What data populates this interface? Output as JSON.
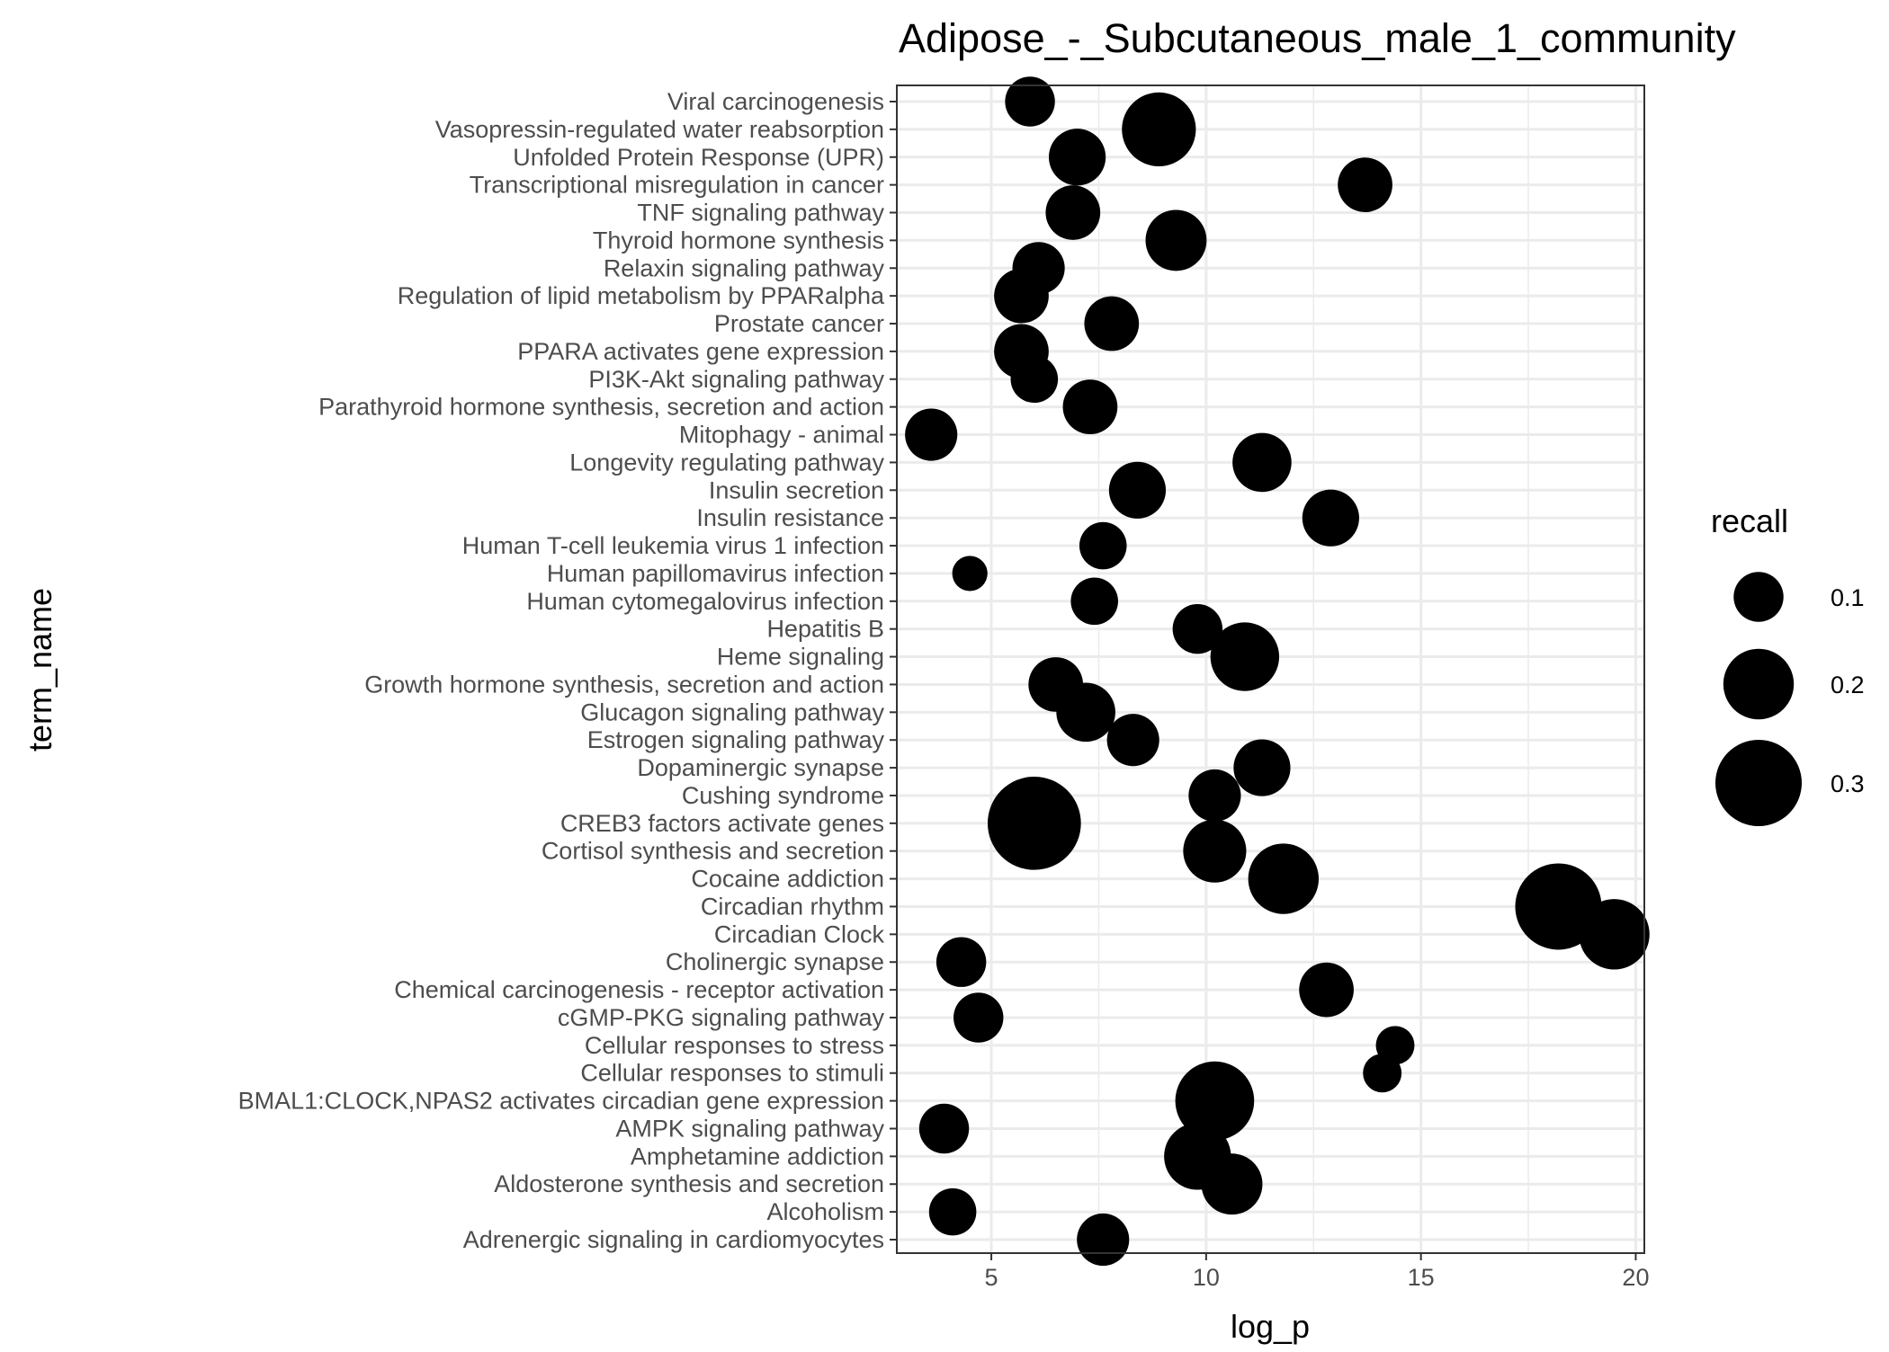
{
  "chart_data": {
    "type": "scatter",
    "title": "Adipose_-_Subcutaneous_male_1_community",
    "xlabel": "log_p",
    "ylabel": "term_name",
    "xlim": [
      2.8,
      20.2
    ],
    "x_ticks": [
      5,
      10,
      15,
      20
    ],
    "grid": true,
    "legend": {
      "title": "recall",
      "placement": "right",
      "entries": [
        {
          "label": "0.1",
          "value": 0.1
        },
        {
          "label": "0.2",
          "value": 0.2
        },
        {
          "label": "0.3",
          "value": 0.3
        }
      ]
    },
    "colors": {
      "point": "#000000",
      "panel_border": "#333333",
      "grid": "#ebebeb"
    },
    "points": [
      {
        "term": "Viral carcinogenesis",
        "log_p": 5.9,
        "recall": 0.1
      },
      {
        "term": "Vasopressin-regulated water reabsorption",
        "log_p": 8.9,
        "recall": 0.22
      },
      {
        "term": "Unfolded Protein Response (UPR)",
        "log_p": 7.0,
        "recall": 0.13
      },
      {
        "term": "Transcriptional misregulation in cancer",
        "log_p": 13.7,
        "recall": 0.12
      },
      {
        "term": "TNF signaling pathway",
        "log_p": 6.9,
        "recall": 0.12
      },
      {
        "term": "Thyroid hormone synthesis",
        "log_p": 9.3,
        "recall": 0.15
      },
      {
        "term": "Relaxin signaling pathway",
        "log_p": 6.1,
        "recall": 0.11
      },
      {
        "term": "Regulation of lipid metabolism by PPARalpha",
        "log_p": 5.7,
        "recall": 0.12
      },
      {
        "term": "Prostate cancer",
        "log_p": 7.8,
        "recall": 0.12
      },
      {
        "term": "PPARA activates gene expression",
        "log_p": 5.7,
        "recall": 0.12
      },
      {
        "term": "PI3K-Akt signaling pathway",
        "log_p": 6.0,
        "recall": 0.09
      },
      {
        "term": "Parathyroid hormone synthesis, secretion and action",
        "log_p": 7.3,
        "recall": 0.12
      },
      {
        "term": "Mitophagy - animal",
        "log_p": 3.6,
        "recall": 0.11
      },
      {
        "term": "Longevity regulating pathway",
        "log_p": 11.3,
        "recall": 0.14
      },
      {
        "term": "Insulin secretion",
        "log_p": 8.4,
        "recall": 0.13
      },
      {
        "term": "Insulin resistance",
        "log_p": 12.9,
        "recall": 0.13
      },
      {
        "term": "Human T-cell leukemia virus 1 infection",
        "log_p": 7.6,
        "recall": 0.09
      },
      {
        "term": "Human papillomavirus infection",
        "log_p": 4.5,
        "recall": 0.05
      },
      {
        "term": "Human cytomegalovirus infection",
        "log_p": 7.4,
        "recall": 0.09
      },
      {
        "term": "Hepatitis B",
        "log_p": 9.8,
        "recall": 0.1
      },
      {
        "term": "Heme signaling",
        "log_p": 10.9,
        "recall": 0.19
      },
      {
        "term": "Growth hormone synthesis, secretion and action",
        "log_p": 6.5,
        "recall": 0.12
      },
      {
        "term": "Glucagon signaling pathway",
        "log_p": 7.2,
        "recall": 0.14
      },
      {
        "term": "Estrogen signaling pathway",
        "log_p": 8.3,
        "recall": 0.11
      },
      {
        "term": "Dopaminergic synapse",
        "log_p": 11.3,
        "recall": 0.13
      },
      {
        "term": "Cushing syndrome",
        "log_p": 10.2,
        "recall": 0.11
      },
      {
        "term": "CREB3 factors activate genes",
        "log_p": 6.0,
        "recall": 0.35
      },
      {
        "term": "Cortisol synthesis and secretion",
        "log_p": 10.2,
        "recall": 0.16
      },
      {
        "term": "Cocaine addiction",
        "log_p": 11.8,
        "recall": 0.2
      },
      {
        "term": "Circadian rhythm",
        "log_p": 18.2,
        "recall": 0.3
      },
      {
        "term": "Circadian Clock",
        "log_p": 19.5,
        "recall": 0.2
      },
      {
        "term": "Cholinergic synapse",
        "log_p": 4.3,
        "recall": 0.1
      },
      {
        "term": "Chemical carcinogenesis - receptor activation",
        "log_p": 12.8,
        "recall": 0.12
      },
      {
        "term": "cGMP-PKG signaling pathway",
        "log_p": 4.7,
        "recall": 0.1
      },
      {
        "term": "Cellular responses to stress",
        "log_p": 14.4,
        "recall": 0.06
      },
      {
        "term": "Cellular responses to stimuli",
        "log_p": 14.1,
        "recall": 0.06
      },
      {
        "term": "BMAL1:CLOCK,NPAS2 activates circadian gene expression",
        "log_p": 10.2,
        "recall": 0.25
      },
      {
        "term": "AMPK signaling pathway",
        "log_p": 3.9,
        "recall": 0.1
      },
      {
        "term": "Amphetamine addiction",
        "log_p": 9.8,
        "recall": 0.18
      },
      {
        "term": "Aldosterone synthesis and secretion",
        "log_p": 10.6,
        "recall": 0.15
      },
      {
        "term": "Alcoholism",
        "log_p": 4.1,
        "recall": 0.09
      },
      {
        "term": "Adrenergic signaling in cardiomyocytes",
        "log_p": 7.6,
        "recall": 0.11
      }
    ]
  }
}
